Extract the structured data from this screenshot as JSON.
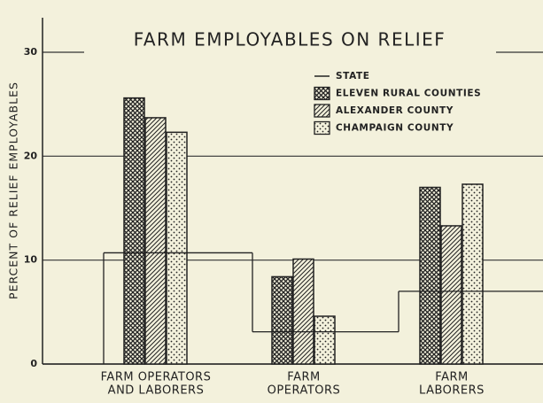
{
  "chart_data": {
    "type": "bar",
    "title": "FARM EMPLOYABLES ON RELIEF",
    "y_label": "PERCENT OF RELIEF EMPLOYABLES",
    "categories": [
      [
        "FARM  OPERATORS",
        "AND  LABORERS"
      ],
      [
        "FARM",
        "OPERATORS"
      ],
      [
        "FARM",
        "LABORERS"
      ]
    ],
    "series": [
      {
        "name": "STATE",
        "kind": "step",
        "color": "#222",
        "values": [
          10.7,
          3.1,
          7.0
        ]
      },
      {
        "name": "ELEVEN RURAL COUNTIES",
        "pattern": "crosshatch",
        "color": "#222",
        "values": [
          25.6,
          8.4,
          17.0
        ]
      },
      {
        "name": "ALEXANDER COUNTY",
        "pattern": "diagonal",
        "color": "#222",
        "values": [
          23.7,
          10.1,
          13.3
        ]
      },
      {
        "name": "CHAMPAIGN COUNTY",
        "pattern": "dots",
        "color": "#222",
        "values": [
          22.3,
          4.6,
          17.3
        ]
      }
    ],
    "ylim": [
      0,
      30
    ],
    "yticks": [
      0,
      10,
      20,
      30
    ],
    "grid": true
  }
}
